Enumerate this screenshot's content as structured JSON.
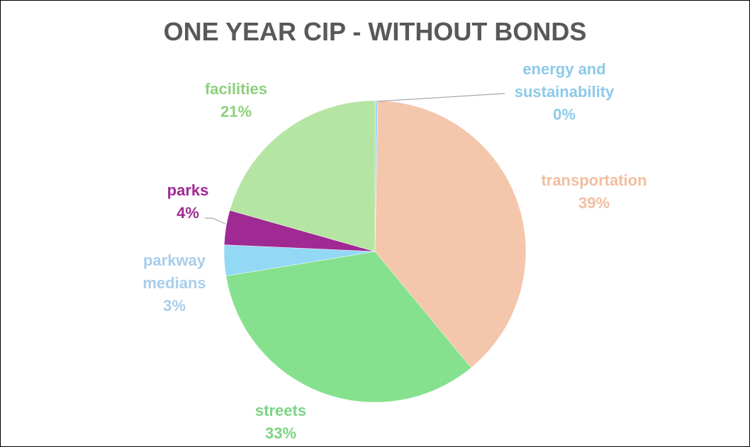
{
  "chart_data": {
    "type": "pie",
    "title": "ONE YEAR CIP - WITHOUT BONDS",
    "slices": [
      {
        "label_lines": [
          "energy and",
          "sustainability"
        ],
        "percent_text": "0%",
        "value": 0.3,
        "color": "#9fd6ef",
        "label_color": "#8dc9e8"
      },
      {
        "label_lines": [
          "transportation"
        ],
        "percent_text": "39%",
        "value": 38.7,
        "color": "#f4c6ac",
        "label_color": "#f2bea1"
      },
      {
        "label_lines": [
          "streets"
        ],
        "percent_text": "33%",
        "value": 33.4,
        "color": "#86e18e",
        "label_color": "#7bd484"
      },
      {
        "label_lines": [
          "parkway",
          "medians"
        ],
        "percent_text": "3%",
        "value": 3.3,
        "color": "#93d8f5",
        "label_color": "#a8cdea"
      },
      {
        "label_lines": [
          "parks"
        ],
        "percent_text": "4%",
        "value": 3.7,
        "color": "#a02a93",
        "label_color": "#a02a93"
      },
      {
        "label_lines": [
          "facilities"
        ],
        "percent_text": "21%",
        "value": 20.6,
        "color": "#b5e5a2",
        "label_color": "#8ed07c"
      }
    ],
    "legend": "none",
    "data_labels": "outside"
  }
}
